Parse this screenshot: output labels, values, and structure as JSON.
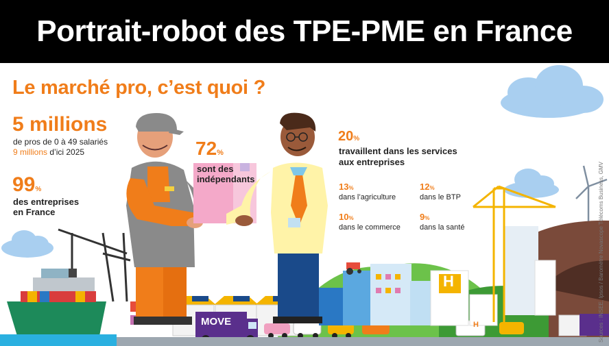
{
  "header": {
    "title": "Portrait-robot des TPE-PME en France"
  },
  "subtitle": "Le marché pro, c’est quoi ?",
  "stats": {
    "millions": {
      "value": "5 millions",
      "line1": "de pros de 0 à 49 salariés",
      "forecast_value": "9 millions",
      "forecast_rest": " d’ici 2025"
    },
    "entreprises": {
      "value": "99",
      "unit": "%",
      "line1": "des entreprises",
      "line2": "en France"
    },
    "independants": {
      "value": "72",
      "unit": "%",
      "line1": "sont des",
      "line2": "indépendants"
    },
    "services": {
      "value": "20",
      "unit": "%",
      "line1": "travaillent dans les services",
      "line2": "aux entreprises"
    },
    "sectors": [
      {
        "value": "13",
        "unit": "%",
        "label": "dans l’agriculture"
      },
      {
        "value": "12",
        "unit": "%",
        "label": "dans le BTP"
      },
      {
        "value": "10",
        "unit": "%",
        "label": "dans le commerce"
      },
      {
        "value": "9",
        "unit": "%",
        "label": "dans la santé"
      }
    ]
  },
  "scene": {
    "truck_logo": "MOVE",
    "shop_letter": "H",
    "shop_letter_small": "H"
  },
  "source": "Sources : INSEE, Ipsos / Baromètre Novascope Télécoms Business, GMV",
  "colors": {
    "orange": "#f07d1a",
    "banner": "#000000",
    "cloud": "#a9cff0",
    "sea": "#2ab0e0"
  }
}
